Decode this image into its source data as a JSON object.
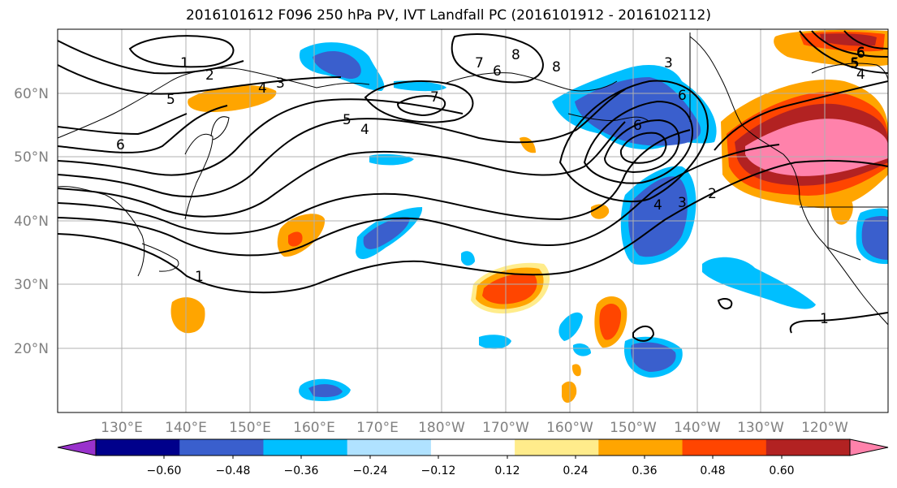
{
  "title": "2016101612 F096 250 hPa PV, IVT Landfall PC (2016101912 - 2016102112)",
  "lat_labels": [
    "60°N",
    "50°N",
    "40°N",
    "30°N",
    "20°N"
  ],
  "lon_labels": [
    "130°E",
    "140°E",
    "150°E",
    "160°E",
    "170°E",
    "180°W",
    "170°W",
    "160°W",
    "150°W",
    "140°W",
    "130°W",
    "120°W"
  ],
  "contour_labels": [
    "1",
    "2",
    "5",
    "4",
    "3",
    "7",
    "8",
    "6",
    "6",
    "3",
    "5",
    "4",
    "7",
    "6",
    "8",
    "6",
    "6",
    "5",
    "4",
    "3",
    "2",
    "1",
    "1",
    "6",
    "5",
    "4"
  ],
  "colorbar": {
    "ticks": [
      "−0.60",
      "−0.48",
      "−0.36",
      "−0.24",
      "−0.12",
      "0.12",
      "0.24",
      "0.36",
      "0.48",
      "0.60"
    ],
    "colors": [
      "#9932cc",
      "#00008b",
      "#3a5fcd",
      "#00bfff",
      "#b0e2ff",
      "#ffffff",
      "#ffec8b",
      "#ffa500",
      "#ff4500",
      "#b22222",
      "#ff82ab"
    ]
  }
}
